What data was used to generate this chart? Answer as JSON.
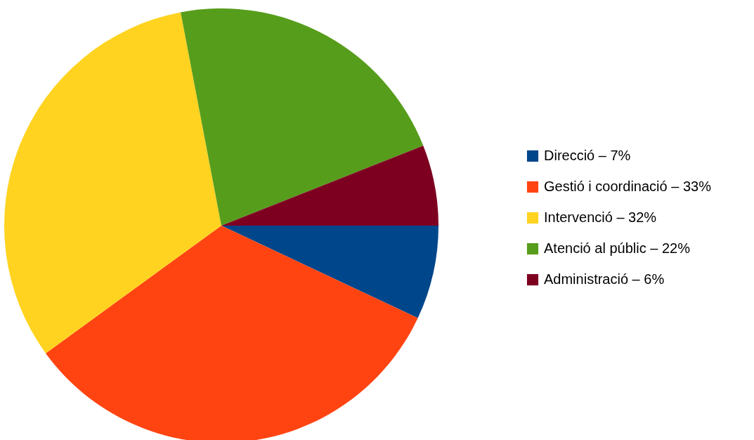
{
  "chart_data": {
    "type": "pie",
    "categories": [
      "Direcció – 7%",
      "Gestió i coordinació – 33%",
      "Intervenció – 32%",
      "Atenció al públic – 22%",
      "Administració – 6%"
    ],
    "values": [
      7,
      33,
      32,
      22,
      6
    ],
    "colors": [
      "#00468b",
      "#ff4411",
      "#ffd320",
      "#579d1c",
      "#7e0021"
    ],
    "legend": "right"
  }
}
